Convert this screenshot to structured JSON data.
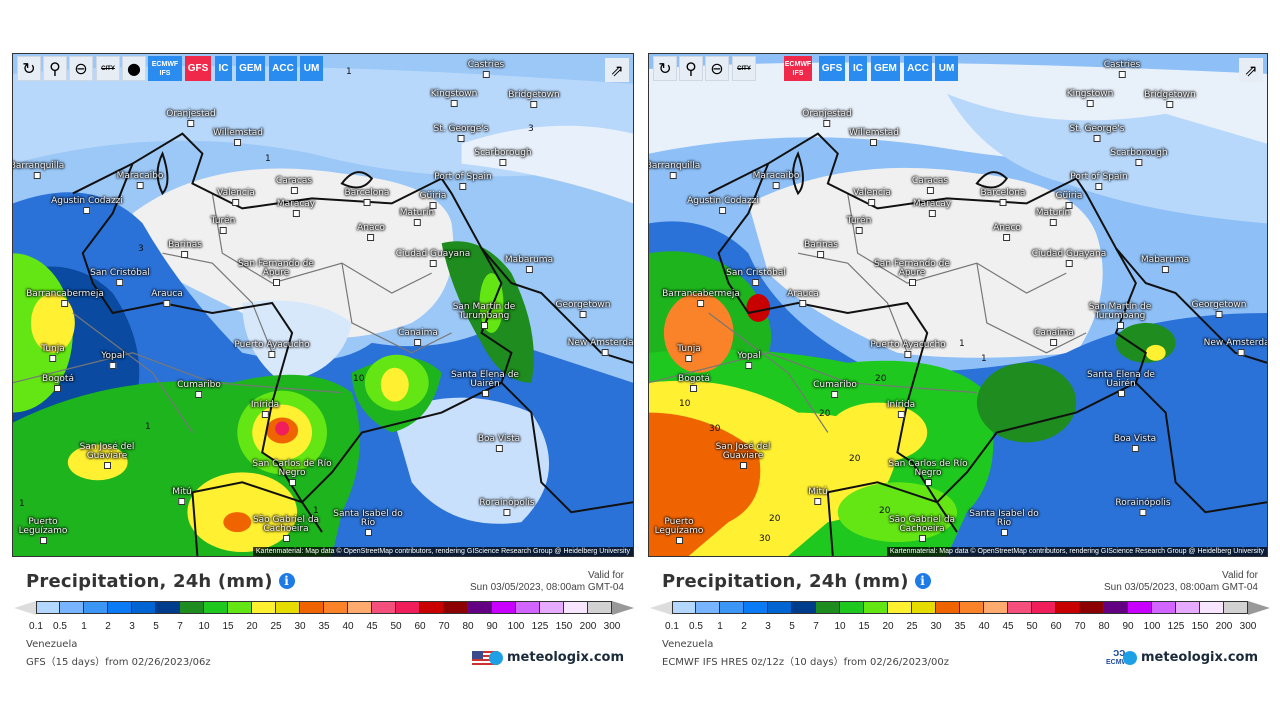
{
  "toolbar_icons": [
    "refresh-icon",
    "location-pin-icon",
    "zoom-out-icon",
    "city-labels-icon",
    "dot-icon"
  ],
  "city_icon_text": "CITY",
  "share_icon": "share-icon",
  "models": [
    "ECMWF IFS",
    "GFS",
    "IC",
    "GEM",
    "ACC",
    "UM"
  ],
  "cities": [
    "Castries",
    "Oranjestad",
    "Willemstad",
    "Kingstown",
    "Bridgetown",
    "St. George's",
    "Scarborough",
    "Port of Spain",
    "Barranquilla",
    "Agustin Codazzi",
    "Maracaibo",
    "Valencia",
    "Caracas",
    "Maracay",
    "Barcelona",
    "Güiria",
    "Maturín",
    "Anaco",
    "Turén",
    "Barinas",
    "San Fernando de Apure",
    "Ciudad Guayana",
    "Mabaruma",
    "San Cristóbal",
    "Arauca",
    "Barrancabermeja",
    "San Martín de Turumbang",
    "Georgetown",
    "Canaima",
    "New Amsterdam",
    "Tunja",
    "Yopal",
    "Puerto Ayacucho",
    "Bogotá",
    "Cumaribo",
    "Santa Elena de Uairén",
    "Inírida",
    "Boa Vista",
    "San José del Guaviare",
    "San Carlos de Río Negro",
    "Mitú",
    "Rorainópolis",
    "Puerto Leguízamo",
    "São Gabriel da Cachoeira",
    "Santa Isabel do Rio"
  ],
  "attribution": "Kartenmaterial: Map data © OpenStreetMap contributors, rendering GIScience Research Group @ Heidelberg University",
  "legend": {
    "labels": [
      "0.1",
      "0.5",
      "1",
      "2",
      "3",
      "5",
      "7",
      "10",
      "15",
      "20",
      "25",
      "30",
      "35",
      "40",
      "45",
      "50",
      "60",
      "70",
      "80",
      "90",
      "100",
      "125",
      "150",
      "200",
      "300"
    ],
    "colors": [
      "#b4d7ff",
      "#78b4ff",
      "#3c96f5",
      "#0a7af5",
      "#0064d2",
      "#003c8c",
      "#1e8c1e",
      "#1ec81e",
      "#64e614",
      "#fff032",
      "#e6dc00",
      "#f06400",
      "#fa8228",
      "#ffaa6e",
      "#f5507d",
      "#f01e5a",
      "#c80000",
      "#8c0000",
      "#640082",
      "#c800ff",
      "#d264ff",
      "#e6aaff",
      "#f8e6ff",
      "#d2d2d2"
    ]
  },
  "panels": [
    {
      "title": "Precipitation, 24h (mm)",
      "valid_label": "Valid for",
      "valid_time": "Sun 03/05/2023, 08:00am GMT-04",
      "region": "Venezuela",
      "model_line": "GFS（15 days）from 02/26/2023/06z",
      "active_model": "GFS",
      "brand": "meteologix.com",
      "contours": [
        "1",
        "3",
        "3",
        "1",
        "10",
        "1",
        "1",
        "1"
      ]
    },
    {
      "title": "Precipitation, 24h (mm)",
      "valid_label": "Valid for",
      "valid_time": "Sun 03/05/2023, 08:00am GMT-04",
      "region": "Venezuela",
      "model_line": "ECMWF IFS HRES 0z/12z（10 days）from 02/26/2023/00z",
      "active_model": "ECMWF IFS",
      "brand": "meteologix.com",
      "ecmwf_logo": "ECMWF",
      "contours": [
        "20",
        "30",
        "20",
        "10",
        "20",
        "30",
        "20",
        "20",
        "1",
        "1"
      ]
    }
  ],
  "colors": {
    "accent": "#2b8cf0",
    "active": "#f0284a"
  }
}
